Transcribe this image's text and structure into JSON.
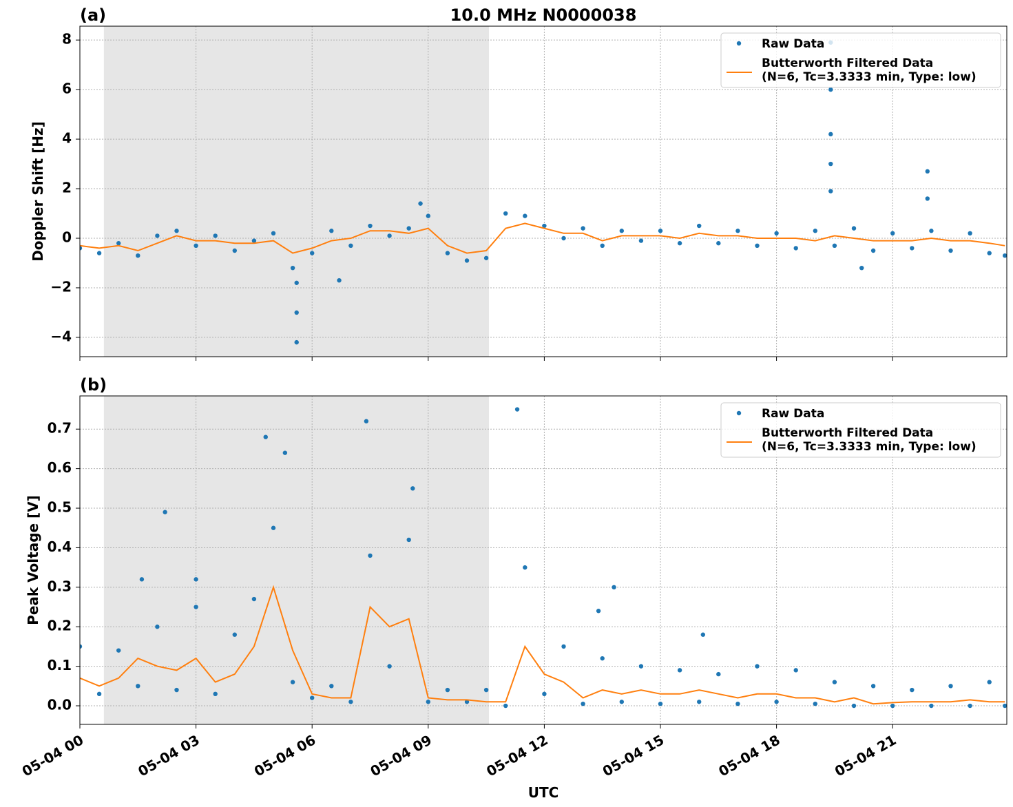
{
  "chart_data": [
    {
      "type": "scatter-line",
      "title": "10.0 MHz N0000038",
      "panel_label": "(a)",
      "y_label": "Doppler Shift [Hz]",
      "xlim": [
        0,
        23.95
      ],
      "xticks": [
        0,
        3,
        6,
        9,
        12,
        15,
        18,
        21
      ],
      "ylim": [
        -4.78,
        8.56
      ],
      "yticks": [
        {
          "value": -4,
          "label": "−4"
        },
        {
          "value": -2,
          "label": "−2"
        },
        0,
        2,
        4,
        6,
        8
      ],
      "shaded_span": [
        0.62,
        10.57
      ],
      "grid": true,
      "legend": "upper right",
      "series": [
        {
          "name": "Raw Data",
          "color": "#1f77b4",
          "style": "points",
          "x": [
            0,
            0.5,
            1,
            1.5,
            2,
            2.5,
            3,
            3.5,
            4,
            4.5,
            5,
            5.5,
            6,
            6.5,
            7,
            7.5,
            8,
            8.5,
            9,
            9.5,
            10,
            10.5,
            11,
            11.5,
            12,
            12.5,
            13,
            13.5,
            14,
            14.5,
            15,
            15.5,
            16,
            16.5,
            17,
            17.5,
            18,
            18.5,
            19,
            19.5,
            20,
            20.5,
            21,
            21.5,
            22,
            22.5,
            23,
            23.5,
            23.9,
            5.6,
            5.6,
            5.6,
            19.4,
            19.4,
            19.4,
            19.4,
            19.4,
            21.9,
            21.9,
            20.2,
            8.8,
            6.7
          ],
          "values": [
            -0.4,
            -0.6,
            -0.2,
            -0.7,
            0.1,
            0.3,
            -0.3,
            0.1,
            -0.5,
            -0.1,
            0.2,
            -1.2,
            -0.6,
            0.3,
            -0.3,
            0.5,
            0.1,
            0.4,
            0.9,
            -0.6,
            -0.9,
            -0.8,
            1.0,
            0.9,
            0.5,
            0.0,
            0.4,
            -0.3,
            0.3,
            -0.1,
            0.3,
            -0.2,
            0.5,
            -0.2,
            0.3,
            -0.3,
            0.2,
            -0.4,
            0.3,
            -0.3,
            0.4,
            -0.5,
            0.2,
            -0.4,
            0.3,
            -0.5,
            0.2,
            -0.6,
            -0.7,
            -4.2,
            -3.0,
            -1.8,
            7.9,
            6.0,
            4.2,
            3.0,
            1.9,
            2.7,
            1.6,
            -1.2,
            1.4,
            -1.7
          ]
        },
        {
          "name": "Butterworth Filtered Data\n(N=6, Tc=3.3333 min, Type: low)",
          "color": "#ff7f0e",
          "style": "line",
          "x": [
            0,
            0.5,
            1,
            1.5,
            2,
            2.5,
            3,
            3.5,
            4,
            4.5,
            5,
            5.5,
            6,
            6.5,
            7,
            7.5,
            8,
            8.5,
            9,
            9.5,
            10,
            10.5,
            11,
            11.5,
            12,
            12.5,
            13,
            13.5,
            14,
            14.5,
            15,
            15.5,
            16,
            16.5,
            17,
            17.5,
            18,
            18.5,
            19,
            19.5,
            20,
            20.5,
            21,
            21.5,
            22,
            22.5,
            23,
            23.5,
            23.9
          ],
          "values": [
            -0.3,
            -0.4,
            -0.3,
            -0.5,
            -0.2,
            0.1,
            -0.1,
            -0.1,
            -0.2,
            -0.2,
            -0.1,
            -0.6,
            -0.4,
            -0.1,
            0.0,
            0.3,
            0.3,
            0.2,
            0.4,
            -0.3,
            -0.6,
            -0.5,
            0.4,
            0.6,
            0.4,
            0.2,
            0.2,
            -0.1,
            0.1,
            0.1,
            0.1,
            0.0,
            0.2,
            0.1,
            0.1,
            0.0,
            0.0,
            0.0,
            -0.1,
            0.1,
            0.0,
            -0.1,
            -0.1,
            -0.1,
            0.0,
            -0.1,
            -0.1,
            -0.2,
            -0.3
          ]
        }
      ]
    },
    {
      "type": "scatter-line",
      "panel_label": "(b)",
      "y_label": "Peak Voltage [V]",
      "x_label": "UTC",
      "xlim": [
        0,
        23.95
      ],
      "xticks": [
        {
          "value": 0,
          "label": "05-04 00"
        },
        {
          "value": 3,
          "label": "05-04 03"
        },
        {
          "value": 6,
          "label": "05-04 06"
        },
        {
          "value": 9,
          "label": "05-04 09"
        },
        {
          "value": 12,
          "label": "05-04 12"
        },
        {
          "value": 15,
          "label": "05-04 15"
        },
        {
          "value": 18,
          "label": "05-04 18"
        },
        {
          "value": 21,
          "label": "05-04 21"
        }
      ],
      "ylim": [
        -0.047,
        0.784
      ],
      "yticks": [
        {
          "value": 0,
          "label": "0.0"
        },
        0.1,
        0.2,
        0.3,
        0.4,
        0.5,
        0.6,
        0.7
      ],
      "shaded_span": [
        0.62,
        10.57
      ],
      "grid": true,
      "legend": "upper right",
      "series": [
        {
          "name": "Raw Data",
          "color": "#1f77b4",
          "style": "points",
          "x": [
            0,
            0.5,
            1,
            1.5,
            2,
            2.5,
            3,
            3.5,
            4,
            4.5,
            5,
            5.5,
            6,
            6.5,
            7,
            7.5,
            8,
            8.5,
            9,
            9.5,
            10,
            10.5,
            11,
            11.5,
            12,
            12.5,
            13,
            13.5,
            14,
            14.5,
            15,
            15.5,
            16,
            16.5,
            17,
            17.5,
            18,
            18.5,
            19,
            19.5,
            20,
            20.5,
            21,
            21.5,
            22,
            22.5,
            23,
            23.5,
            23.9,
            2.2,
            4.8,
            5.3,
            7.4,
            8.6,
            11.3,
            13.8,
            13.4,
            1.6,
            3.0,
            16.1
          ],
          "values": [
            0.15,
            0.03,
            0.14,
            0.05,
            0.2,
            0.04,
            0.25,
            0.03,
            0.18,
            0.27,
            0.45,
            0.06,
            0.02,
            0.05,
            0.01,
            0.38,
            0.1,
            0.42,
            0.01,
            0.04,
            0.01,
            0.04,
            0.0,
            0.35,
            0.03,
            0.15,
            0.005,
            0.12,
            0.01,
            0.1,
            0.005,
            0.09,
            0.01,
            0.08,
            0.005,
            0.1,
            0.01,
            0.09,
            0.005,
            0.06,
            0.0,
            0.05,
            0.0,
            0.04,
            0.0,
            0.05,
            0.0,
            0.06,
            0.0,
            0.49,
            0.68,
            0.64,
            0.72,
            0.55,
            0.75,
            0.3,
            0.24,
            0.32,
            0.32,
            0.18
          ]
        },
        {
          "name": "Butterworth Filtered Data\n(N=6, Tc=3.3333 min, Type: low)",
          "color": "#ff7f0e",
          "style": "line",
          "x": [
            0,
            0.5,
            1,
            1.5,
            2,
            2.5,
            3,
            3.5,
            4,
            4.5,
            5,
            5.5,
            6,
            6.5,
            7,
            7.5,
            8,
            8.5,
            9,
            9.5,
            10,
            10.5,
            11,
            11.5,
            12,
            12.5,
            13,
            13.5,
            14,
            14.5,
            15,
            15.5,
            16,
            16.5,
            17,
            17.5,
            18,
            18.5,
            19,
            19.5,
            20,
            20.5,
            21,
            21.5,
            22,
            22.5,
            23,
            23.5,
            23.9
          ],
          "values": [
            0.07,
            0.05,
            0.07,
            0.12,
            0.1,
            0.09,
            0.12,
            0.06,
            0.08,
            0.15,
            0.3,
            0.14,
            0.03,
            0.02,
            0.02,
            0.25,
            0.2,
            0.22,
            0.02,
            0.015,
            0.015,
            0.01,
            0.01,
            0.15,
            0.08,
            0.06,
            0.02,
            0.04,
            0.03,
            0.04,
            0.03,
            0.03,
            0.04,
            0.03,
            0.02,
            0.03,
            0.03,
            0.02,
            0.02,
            0.01,
            0.02,
            0.005,
            0.008,
            0.01,
            0.01,
            0.01,
            0.015,
            0.01,
            0.01
          ]
        }
      ]
    }
  ]
}
